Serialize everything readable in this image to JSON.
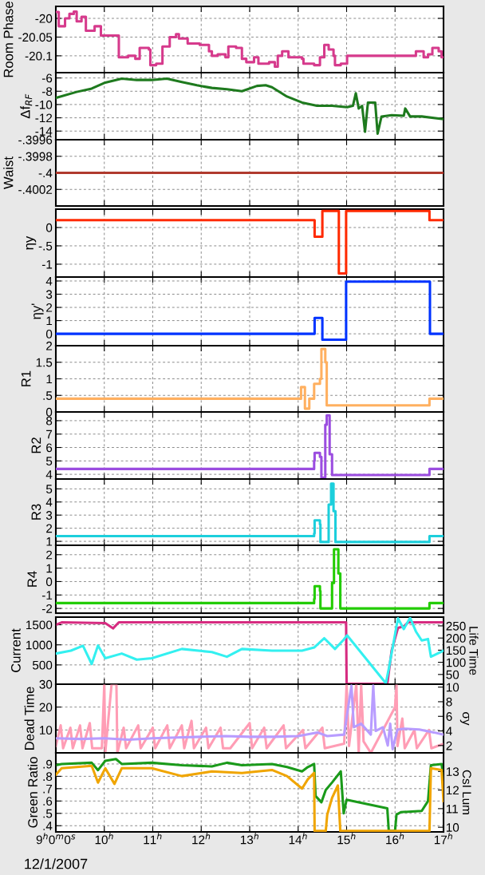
{
  "chart_data": [
    {
      "type": "step",
      "ylabel": "Room Phase",
      "xlim": [
        9,
        17
      ],
      "xticks": [
        9,
        10,
        11,
        12,
        13,
        14,
        15,
        16,
        17
      ],
      "ylim": [
        -20.145,
        -19.968
      ],
      "yticks": [
        {
          "value": -20,
          "label": "-20"
        },
        {
          "value": -20.05,
          "label": "-20.05"
        },
        {
          "value": -20.1,
          "label": "-20.1"
        }
      ],
      "grid": true,
      "tick_labels": "y",
      "series": [
        {
          "color": "#d63a8c",
          "x": [
            9.0,
            9.06,
            9.19,
            9.28,
            9.37,
            9.43,
            9.53,
            9.62,
            9.8,
            9.93,
            10.3,
            10.49,
            10.64,
            10.73,
            10.92,
            10.95,
            11.07,
            11.2,
            11.35,
            11.48,
            11.54,
            11.72,
            11.97,
            12.16,
            12.22,
            12.34,
            12.5,
            12.56,
            12.72,
            12.84,
            12.93,
            13.09,
            13.18,
            13.4,
            13.52,
            13.58,
            13.67,
            13.8,
            14.08,
            14.11,
            14.33,
            14.45,
            14.54,
            14.63,
            14.73,
            14.76,
            14.88,
            15.01,
            16.43,
            16.59,
            16.68,
            16.77,
            16.9,
            16.96,
            17.0
          ],
          "values": [
            -19.983,
            -20.021,
            -20.0,
            -19.988,
            -19.982,
            -20.008,
            -19.996,
            -20.033,
            -20.021,
            -20.046,
            -20.104,
            -20.1,
            -20.108,
            -20.079,
            -20.083,
            -20.125,
            -20.121,
            -20.075,
            -20.05,
            -20.042,
            -20.054,
            -20.067,
            -20.071,
            -20.088,
            -20.1,
            -20.096,
            -20.104,
            -20.075,
            -20.079,
            -20.108,
            -20.117,
            -20.104,
            -20.121,
            -20.117,
            -20.129,
            -20.1,
            -20.088,
            -20.104,
            -20.108,
            -20.121,
            -20.125,
            -20.104,
            -20.071,
            -20.083,
            -20.1,
            -20.125,
            -20.121,
            -20.1,
            -20.088,
            -20.104,
            -20.096,
            -20.079,
            -20.088,
            -20.104,
            -20.104
          ]
        }
      ]
    },
    {
      "type": "line",
      "ylabel": "Δf$_{RF}$",
      "xlim": [
        9,
        17
      ],
      "xticks": [
        9,
        10,
        11,
        12,
        13,
        14,
        15,
        16,
        17
      ],
      "ylim": [
        -15.3,
        -5.2
      ],
      "yticks": [
        -6,
        -8,
        -10,
        -12,
        -14
      ],
      "grid": true,
      "tick_labels": "y",
      "series": [
        {
          "color": "#1e7a1e",
          "x": [
            9.0,
            9.43,
            9.74,
            10.02,
            10.36,
            10.67,
            10.98,
            11.29,
            11.6,
            11.91,
            12.22,
            12.53,
            12.84,
            13.15,
            13.33,
            13.46,
            13.77,
            14.08,
            14.39,
            14.7,
            15.01,
            15.13,
            15.19,
            15.25,
            15.32,
            15.38,
            15.44,
            15.59,
            15.64,
            15.72,
            15.93,
            16.18,
            16.21,
            16.31,
            16.55,
            17.0
          ],
          "values": [
            -9.0,
            -8.1,
            -7.6,
            -6.7,
            -6.1,
            -6.3,
            -6.3,
            -6.1,
            -6.6,
            -7.1,
            -7.5,
            -7.7,
            -8.0,
            -7.2,
            -7.1,
            -7.4,
            -8.8,
            -9.7,
            -10.2,
            -10.2,
            -10.4,
            -10.2,
            -8.3,
            -10.6,
            -10.2,
            -14.1,
            -9.7,
            -9.7,
            -14.4,
            -11.8,
            -11.6,
            -11.7,
            -10.6,
            -11.8,
            -11.8,
            -12.2
          ]
        }
      ]
    },
    {
      "type": "line",
      "ylabel": "Waist",
      "xlim": [
        9,
        17
      ],
      "xticks": [
        9,
        10,
        11,
        12,
        13,
        14,
        15,
        16,
        17
      ],
      "ylim": [
        -0.4004,
        -0.3996
      ],
      "yticks": [
        {
          "value": -0.3996,
          "label": "-.3996"
        },
        {
          "value": -0.3998,
          "label": "-.3998"
        },
        {
          "value": -0.4,
          "label": "-.4"
        },
        {
          "value": -0.4002,
          "label": "-.4002"
        }
      ],
      "grid": true,
      "tick_labels": "y",
      "series": [
        {
          "color": "#b03a2e",
          "x": [
            9,
            17
          ],
          "values": [
            -0.4,
            -0.4
          ]
        }
      ]
    },
    {
      "type": "step",
      "ylabel": "ηy",
      "xlim": [
        9,
        17
      ],
      "xticks": [
        9,
        10,
        11,
        12,
        13,
        14,
        15,
        16,
        17
      ],
      "ylim": [
        -1.35,
        0.5
      ],
      "yticks": [
        0,
        {
          "value": -0.5,
          "label": "-.5"
        },
        -1
      ],
      "grid": true,
      "tick_labels": "y",
      "series": [
        {
          "color": "#ff2a00",
          "x": [
            9,
            14.34,
            14.5,
            14.84,
            14.99,
            16.71,
            17
          ],
          "values": [
            0.2,
            -0.25,
            0.45,
            -1.25,
            0.45,
            0.2,
            0.2
          ]
        }
      ]
    },
    {
      "type": "step",
      "ylabel": "ηy'",
      "xlim": [
        9,
        17
      ],
      "xticks": [
        9,
        10,
        11,
        12,
        13,
        14,
        15,
        16,
        17
      ],
      "ylim": [
        -0.9,
        4.3
      ],
      "yticks": [
        0,
        1,
        2,
        3,
        4
      ],
      "grid": true,
      "tick_labels": "y",
      "series": [
        {
          "color": "#0033ff",
          "x": [
            9,
            14.34,
            14.5,
            14.99,
            16.72,
            17
          ],
          "values": [
            0,
            1.2,
            -0.45,
            3.95,
            0,
            0
          ]
        }
      ]
    },
    {
      "type": "step",
      "ylabel": "R1",
      "xlim": [
        9,
        17
      ],
      "xticks": [
        9,
        10,
        11,
        12,
        13,
        14,
        15,
        16,
        17
      ],
      "ylim": [
        0,
        2
      ],
      "yticks": [
        0,
        {
          "value": 0.5,
          "label": ".5"
        },
        1,
        1.5,
        2
      ],
      "grid": true,
      "tick_labels": "y",
      "series": [
        {
          "color": "#ffb060",
          "x": [
            9,
            14.06,
            14.14,
            14.23,
            14.33,
            14.45,
            14.48,
            14.56,
            14.59,
            16.71,
            17
          ],
          "values": [
            0.4,
            0.75,
            0.1,
            0.4,
            0.85,
            1.0,
            1.9,
            1.5,
            0.2,
            0.4,
            0.4
          ]
        }
      ]
    },
    {
      "type": "step",
      "ylabel": "R2",
      "xlim": [
        9,
        17
      ],
      "xticks": [
        9,
        10,
        11,
        12,
        13,
        14,
        15,
        16,
        17
      ],
      "ylim": [
        3.65,
        8.65
      ],
      "yticks": [
        4,
        5,
        6,
        7,
        8
      ],
      "grid": true,
      "tick_labels": "y",
      "series": [
        {
          "color": "#9b4de0",
          "x": [
            9,
            14.33,
            14.34,
            14.45,
            14.48,
            14.56,
            14.59,
            14.65,
            14.7,
            16.71,
            17
          ],
          "values": [
            4.4,
            5.0,
            5.6,
            5.3,
            3.75,
            7.7,
            8.4,
            5.5,
            3.95,
            4.4,
            4.4
          ]
        }
      ]
    },
    {
      "type": "step",
      "ylabel": "R3",
      "xlim": [
        9,
        17
      ],
      "xticks": [
        9,
        10,
        11,
        12,
        13,
        14,
        15,
        16,
        17
      ],
      "ylim": [
        0.7,
        5.75
      ],
      "yticks": [
        1,
        2,
        3,
        4,
        5
      ],
      "grid": true,
      "tick_labels": "y",
      "series": [
        {
          "color": "#1ccfdc",
          "x": [
            9,
            14.33,
            14.34,
            14.45,
            14.46,
            14.63,
            14.68,
            14.73,
            14.77,
            16.71,
            17
          ],
          "values": [
            1.4,
            1.6,
            2.6,
            2.3,
            0.95,
            3.8,
            5.4,
            3.3,
            0.95,
            1.4,
            1.4
          ]
        }
      ]
    },
    {
      "type": "step",
      "ylabel": "R4",
      "xlim": [
        9,
        17
      ],
      "xticks": [
        9,
        10,
        11,
        12,
        13,
        14,
        15,
        16,
        17
      ],
      "ylim": [
        -2.35,
        2.7
      ],
      "yticks": [
        -2,
        -1,
        0,
        1,
        2
      ],
      "grid": true,
      "tick_labels": "y",
      "series": [
        {
          "color": "#22cc00",
          "x": [
            9,
            14.33,
            14.34,
            14.45,
            14.46,
            14.7,
            14.74,
            14.83,
            14.87,
            16.71,
            17
          ],
          "values": [
            -1.6,
            -1.3,
            -0.35,
            -0.7,
            -2.0,
            -0.1,
            2.4,
            0.6,
            -2.0,
            -1.6,
            -1.6
          ]
        }
      ]
    },
    {
      "type": "line",
      "ylabel": "Current",
      "y2label": "Life Time",
      "xlim": [
        9,
        17
      ],
      "xticks": [
        9,
        10,
        11,
        12,
        13,
        14,
        15,
        16,
        17
      ],
      "ylim": [
        20,
        1690
      ],
      "yticks": [
        500,
        1000,
        1500
      ],
      "y2lim": [
        10,
        286
      ],
      "y2ticks": [
        50,
        100,
        150,
        200,
        250
      ],
      "grid": true,
      "tick_labels": "y",
      "series": [
        {
          "color": "#d62b80",
          "x": [
            9.0,
            9.12,
            10.02,
            10.18,
            10.3,
            14.99,
            15.0,
            15.84,
            15.93,
            16.06,
            16.18,
            16.27,
            17.0
          ],
          "values": [
            1500,
            1560,
            1540,
            1410,
            1560,
            1560,
            30,
            30,
            860,
            1420,
            1460,
            1560,
            1560
          ]
        },
        {
          "color": "#33f0f0",
          "axis": "y2",
          "x": [
            9.0,
            9.31,
            9.56,
            9.74,
            9.87,
            10.02,
            10.36,
            10.67,
            10.98,
            11.6,
            12.22,
            12.53,
            12.84,
            13.46,
            14.08,
            14.33,
            14.54,
            14.76,
            14.94,
            15.01,
            15.81,
            15.87,
            16.06,
            16.18,
            16.31,
            16.43,
            16.55,
            16.68,
            16.74,
            17.0
          ],
          "values": [
            136,
            148,
            168,
            93,
            169,
            117,
            136,
            111,
            117,
            155,
            142,
            123,
            155,
            148,
            148,
            161,
            199,
            155,
            193,
            211,
            14,
            73,
            281,
            237,
            283,
            227,
            190,
            196,
            123,
            148
          ]
        }
      ]
    },
    {
      "type": "line",
      "ylabel": "Dead Time",
      "y2label": "σy",
      "xlim": [
        9,
        17
      ],
      "xticks": [
        9,
        10,
        11,
        12,
        13,
        14,
        15,
        16,
        17
      ],
      "ylim": [
        0,
        30
      ],
      "yticks": [
        10,
        20,
        30
      ],
      "y2lim": [
        1,
        10.4
      ],
      "y2ticks": [
        2,
        4,
        6,
        8,
        10
      ],
      "grid": true,
      "tick_labels": "y",
      "series": [
        {
          "color": "#ff9db5",
          "x": [
            9.0,
            9.1,
            9.15,
            9.3,
            9.35,
            9.5,
            9.55,
            9.7,
            9.75,
            9.95,
            10.0,
            10.02,
            10.15,
            10.25,
            10.27,
            10.4,
            10.45,
            10.7,
            10.75,
            11.0,
            11.05,
            11.3,
            11.35,
            11.6,
            11.65,
            11.8,
            11.85,
            12.1,
            12.15,
            12.4,
            12.45,
            12.6,
            13.0,
            13.05,
            13.3,
            13.35,
            13.7,
            13.75,
            14.1,
            14.15,
            14.5,
            14.55,
            14.95,
            15.0,
            15.05,
            15.2,
            15.25,
            15.3,
            15.35,
            15.5,
            16.0,
            16.03,
            16.05,
            16.15,
            16.2,
            16.4,
            16.45,
            16.7,
            16.75,
            17.0
          ],
          "values": [
            3,
            12,
            2,
            11,
            2,
            12,
            2,
            13,
            2,
            2,
            30,
            0,
            30,
            30,
            0,
            11,
            2,
            12,
            2,
            11,
            2,
            12,
            2,
            12,
            2,
            14,
            2,
            11,
            2,
            11,
            2,
            2,
            13,
            2,
            11,
            2,
            12,
            2,
            10,
            2,
            11,
            2,
            4,
            30,
            3,
            30,
            0,
            30,
            5,
            0,
            20,
            30,
            3,
            15,
            2,
            10,
            2,
            10,
            2,
            4
          ]
        },
        {
          "color": "#b89cff",
          "axis": "y2",
          "x": [
            9.0,
            9.5,
            10.0,
            10.5,
            11.0,
            11.5,
            12.0,
            12.5,
            13.0,
            13.5,
            14.0,
            14.4,
            14.6,
            14.95,
            15.0,
            15.1,
            15.15,
            15.3,
            15.5,
            15.55,
            15.6,
            15.75,
            15.85,
            15.9,
            15.95,
            16.05,
            16.2,
            16.5,
            16.8,
            17.0
          ],
          "values": [
            3.0,
            2.9,
            3.0,
            2.8,
            3.0,
            3.1,
            3.2,
            3.3,
            3.2,
            3.2,
            3.3,
            3.8,
            3.3,
            3.5,
            5.8,
            10.2,
            4.5,
            5.0,
            3.5,
            10.2,
            4.0,
            4.5,
            2.0,
            5.0,
            1.5,
            4.2,
            4.3,
            4.2,
            3.8,
            3.5
          ]
        }
      ]
    },
    {
      "type": "line",
      "ylabel": "Green Ratio",
      "y2label": "CsI Lum",
      "xlim": [
        9,
        17
      ],
      "xticks": [
        {
          "value": 9,
          "label": "9$^{h}$0$^{m}$0$^{s}$"
        },
        {
          "value": 10,
          "label": "10$^{h}$"
        },
        {
          "value": 11,
          "label": "11$^{h}$"
        },
        {
          "value": 12,
          "label": "12$^{h}$"
        },
        {
          "value": 13,
          "label": "13$^{h}$"
        },
        {
          "value": 14,
          "label": "14$^{h}$"
        },
        {
          "value": 15,
          "label": "15$^{h}$"
        },
        {
          "value": 16,
          "label": "16$^{h}$"
        },
        {
          "value": 17,
          "label": "17$^{h}$"
        }
      ],
      "ylim": [
        0.35,
        0.99
      ],
      "yticks": [
        {
          "value": 0.4,
          "label": ".4"
        },
        {
          "value": 0.5,
          "label": ".5"
        },
        {
          "value": 0.6,
          "label": ".6"
        },
        {
          "value": 0.7,
          "label": ".7"
        },
        {
          "value": 0.8,
          "label": ".8"
        },
        {
          "value": 0.9,
          "label": ".9"
        }
      ],
      "y2lim": [
        9.75,
        14.0
      ],
      "y2ticks": [
        10,
        11,
        12,
        13
      ],
      "grid": true,
      "annotations": [
        "12/1/2007"
      ],
      "series": [
        {
          "color": "#f0a500",
          "axis": "y2",
          "x": [
            9.0,
            9.12,
            9.74,
            9.87,
            10.02,
            10.21,
            10.36,
            10.98,
            11.6,
            12.22,
            12.84,
            13.46,
            13.77,
            14.08,
            14.2,
            14.33,
            14.34,
            14.57,
            14.6,
            14.7,
            14.82,
            14.87,
            16.71,
            16.74,
            16.96,
            17.0
          ],
          "values": [
            12.83,
            13.17,
            13.3,
            12.4,
            13.17,
            12.33,
            13.17,
            13.17,
            12.75,
            13.0,
            12.92,
            13.08,
            12.75,
            12.08,
            12.58,
            12.92,
            9.8,
            9.8,
            10.67,
            11.58,
            12.25,
            9.8,
            9.8,
            13.17,
            13.08,
            11.4
          ]
        },
        {
          "color": "#1a9a1a",
          "x": [
            9.0,
            9.12,
            9.74,
            9.87,
            10.02,
            10.24,
            10.36,
            10.98,
            11.6,
            12.22,
            12.53,
            12.84,
            13.46,
            13.77,
            14.08,
            14.2,
            14.33,
            14.36,
            14.48,
            14.57,
            14.7,
            14.88,
            14.94,
            15.0,
            15.84,
            15.87,
            16.0,
            16.03,
            16.12,
            16.55,
            16.68,
            16.74,
            16.96,
            17.0
          ],
          "values": [
            0.89,
            0.9,
            0.91,
            0.85,
            0.925,
            0.94,
            0.9,
            0.91,
            0.89,
            0.88,
            0.91,
            0.89,
            0.9,
            0.875,
            0.84,
            0.875,
            0.9,
            0.64,
            0.59,
            0.69,
            0.75,
            0.84,
            0.5,
            0.61,
            0.54,
            0.36,
            0.36,
            0.49,
            0.51,
            0.52,
            0.6,
            0.89,
            0.9,
            0.79
          ]
        }
      ]
    }
  ]
}
